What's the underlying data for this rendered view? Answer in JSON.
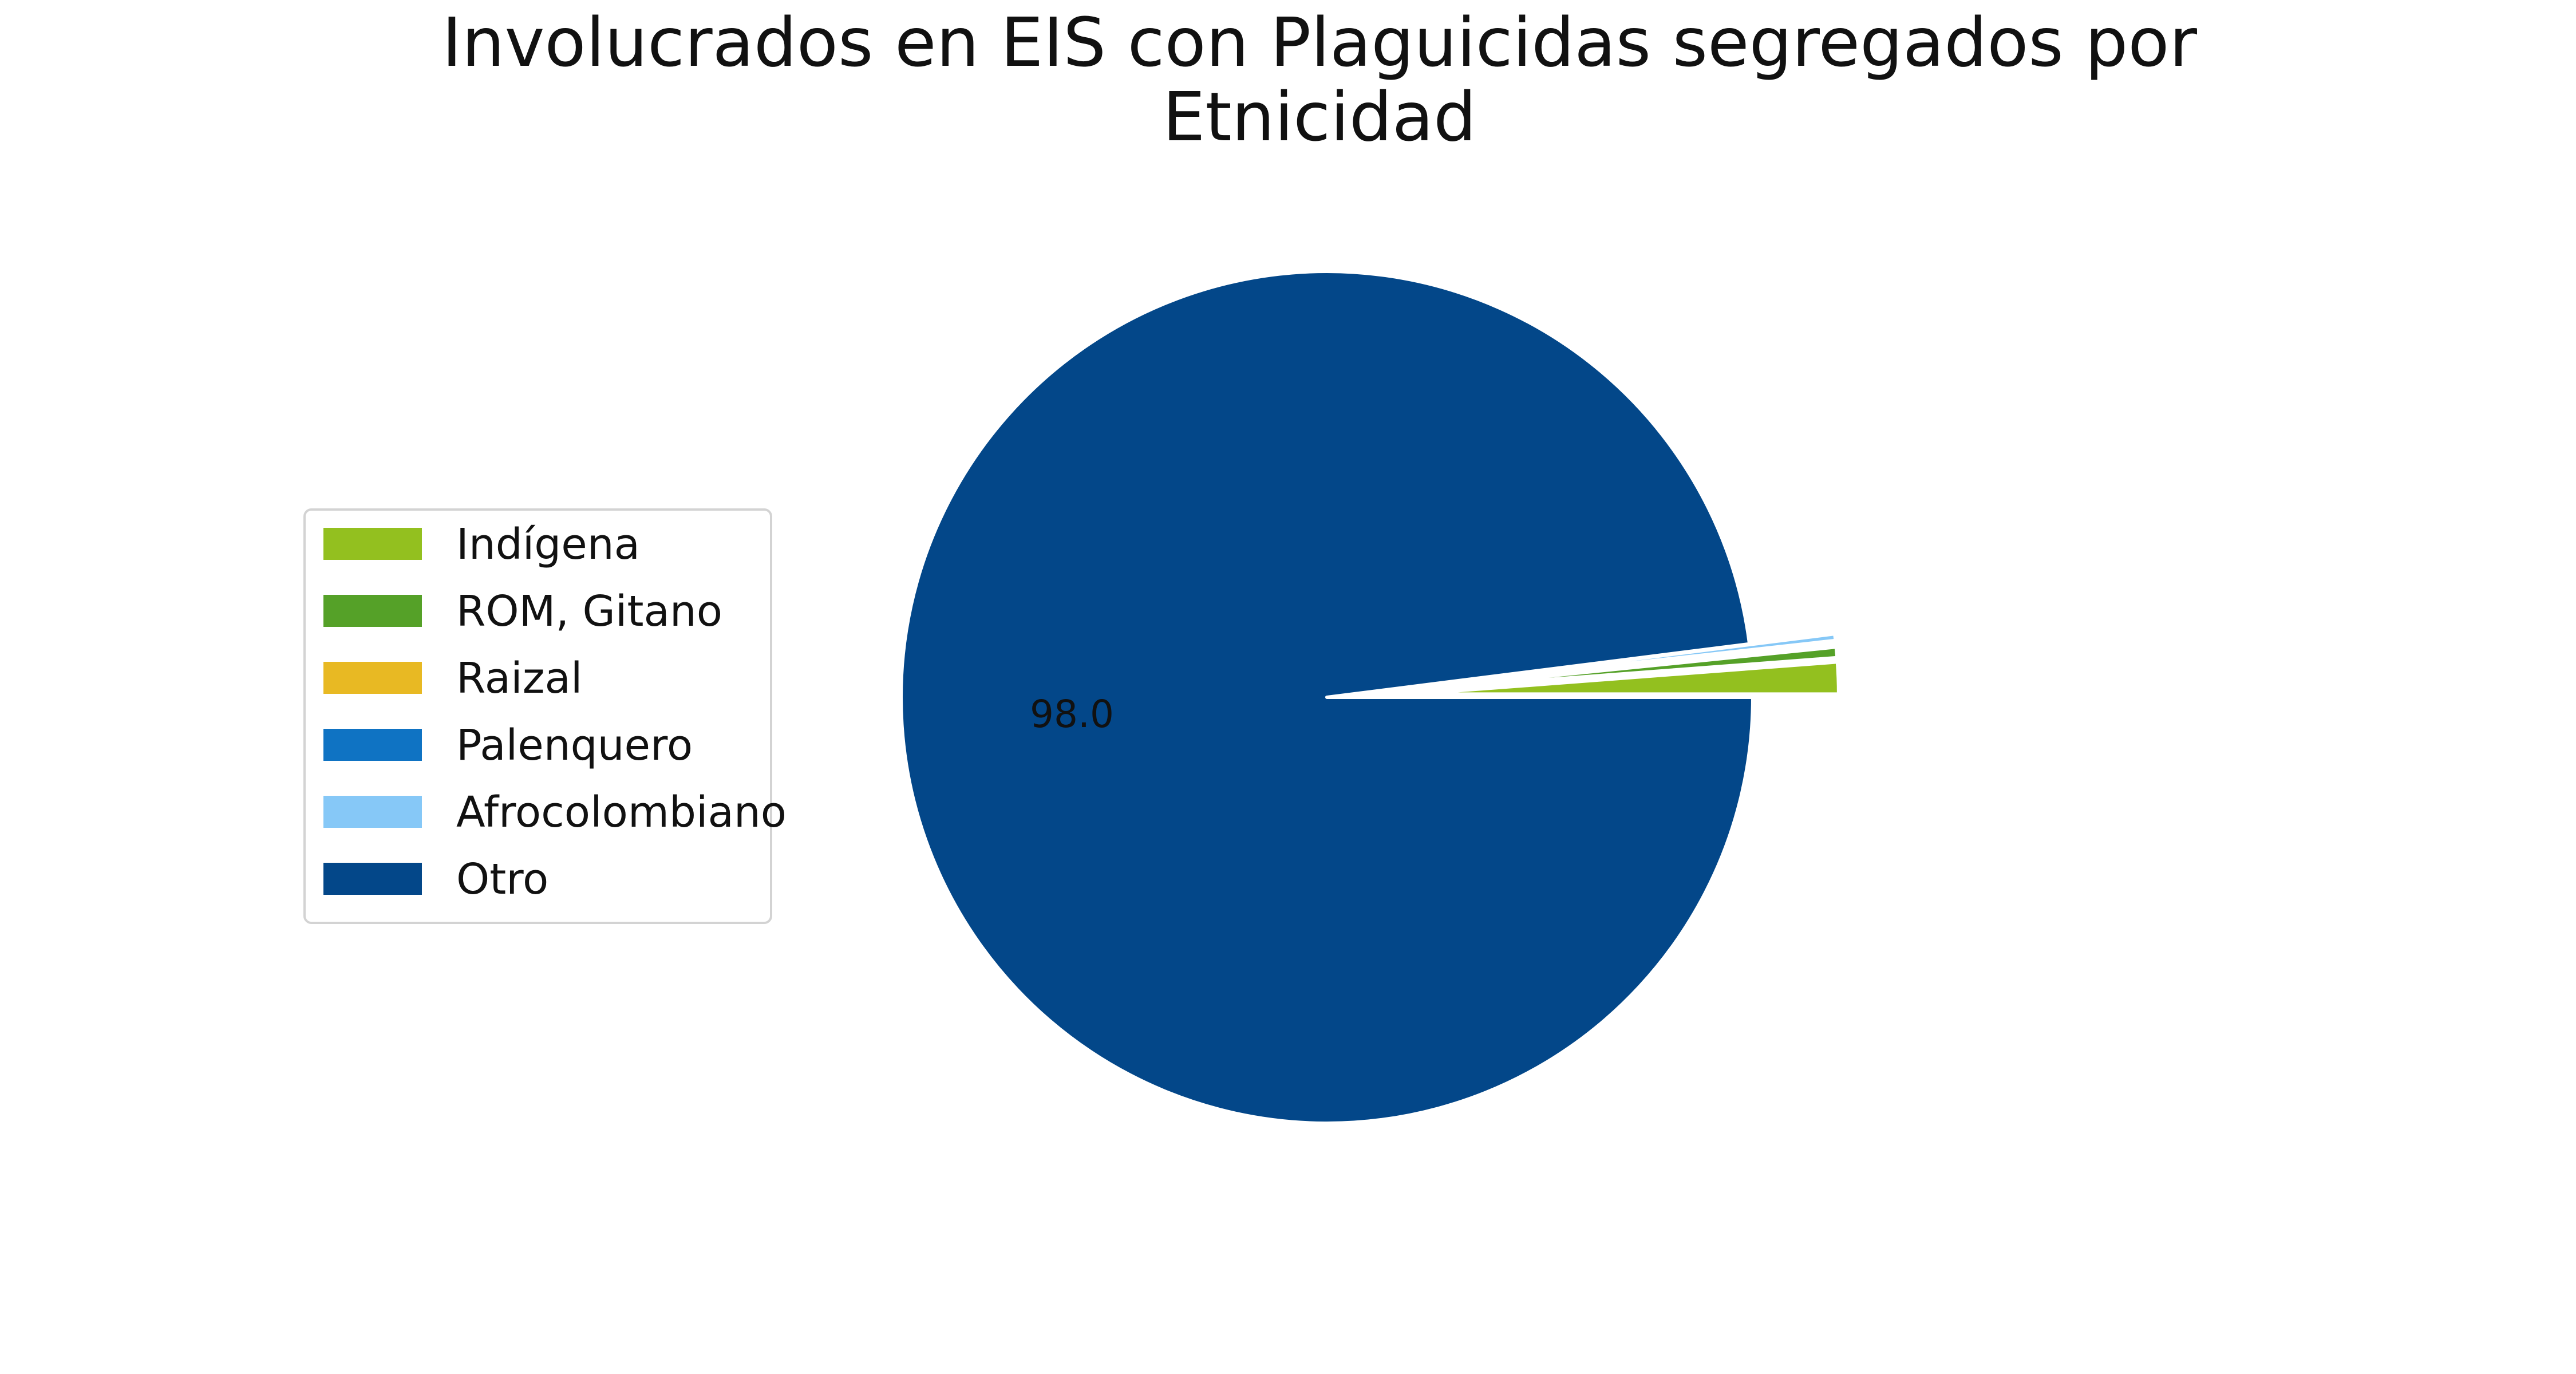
{
  "chart_data": {
    "type": "pie",
    "title": [
      "Involucrados en EIS con Plaguicidas segregados por",
      "Etnicidad"
    ],
    "categories": [
      "Indígena",
      "ROM, Gitano",
      "Raizal",
      "Palenquero",
      "Afrocolombiano",
      "Otro"
    ],
    "values": [
      1.2,
      0.4,
      0.1,
      0.05,
      0.25,
      98.0
    ],
    "colors": [
      "#93c01f",
      "#55a128",
      "#e8b923",
      "#0f73c3",
      "#86c8f7",
      "#034789"
    ],
    "explode_index": [
      0,
      1,
      2,
      3,
      4
    ],
    "data_labels": [
      {
        "category": "Otro",
        "text": "98.0"
      }
    ],
    "legend_position": "center-left",
    "start_angle_deg": 0,
    "direction": "counterclockwise"
  }
}
